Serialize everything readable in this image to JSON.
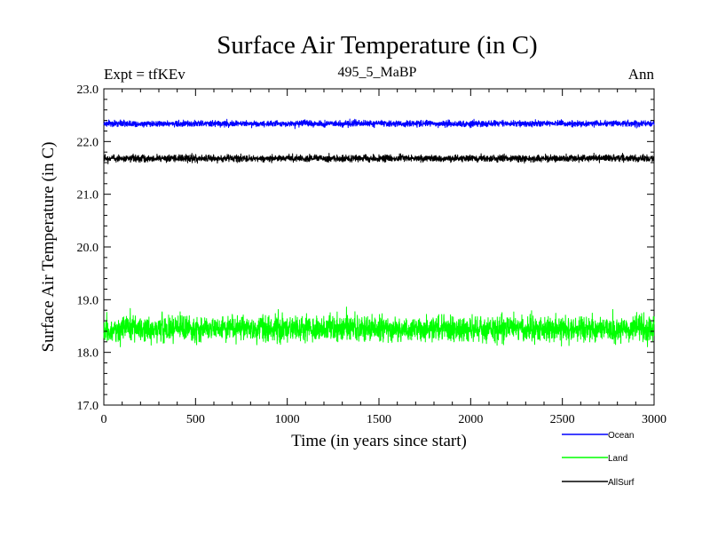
{
  "chart_data": {
    "type": "line",
    "title": "Surface Air Temperature (in C)",
    "subtitle": "495_5_MaBP",
    "left_label": "Expt = tfKEv",
    "right_label": "Ann",
    "xlabel": "Time (in years since start)",
    "ylabel": "Surface Air Temperature (in C)",
    "xlim": [
      0,
      3000
    ],
    "ylim": [
      17.0,
      23.0
    ],
    "xticks": [
      "0",
      "500",
      "1000",
      "1500",
      "2000",
      "2500",
      "3000"
    ],
    "yticks": [
      "17.0",
      "18.0",
      "19.0",
      "20.0",
      "21.0",
      "22.0",
      "23.0"
    ],
    "grid": false,
    "legend_position": "bottom-right",
    "series": [
      {
        "name": "Ocean",
        "color": "#0000ff",
        "mean": 22.34,
        "noise": 0.04,
        "years": 3000
      },
      {
        "name": "Land",
        "color": "#00ff00",
        "mean": 18.45,
        "noise": 0.17,
        "years": 3000
      },
      {
        "name": "AllSurf",
        "color": "#000000",
        "mean": 21.68,
        "noise": 0.045,
        "years": 3000
      }
    ]
  }
}
